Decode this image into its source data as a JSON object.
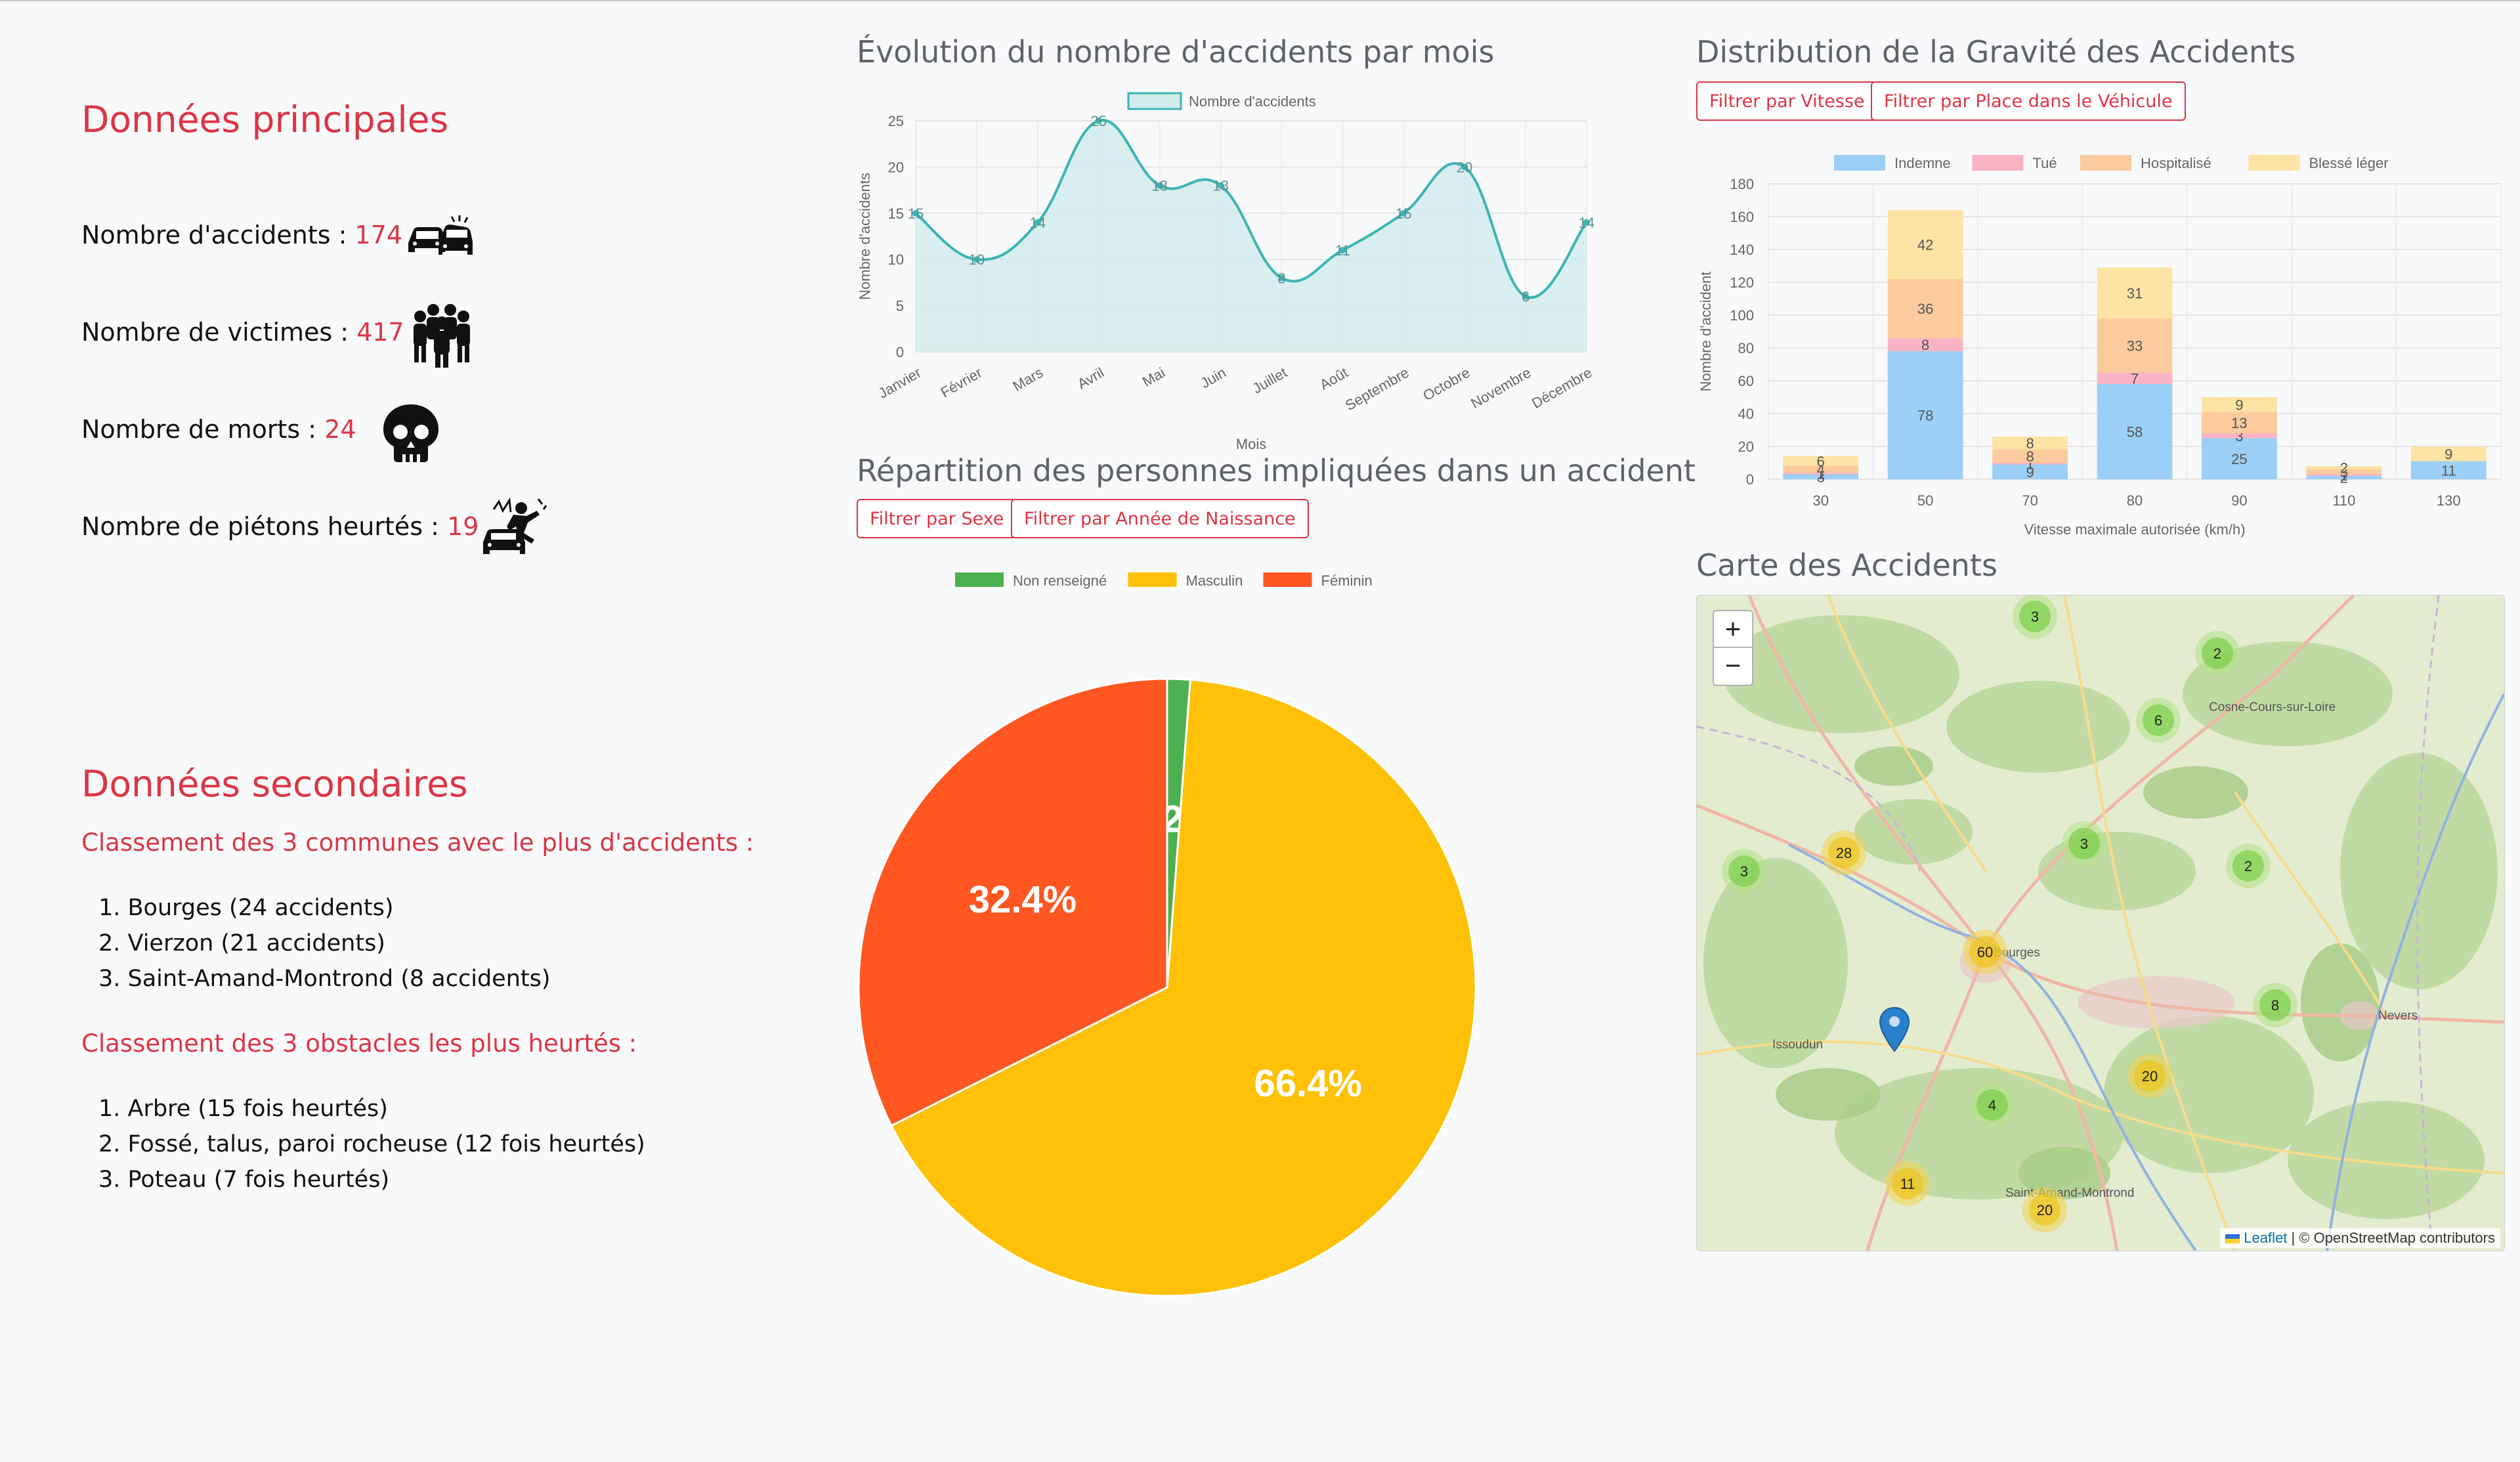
{
  "left": {
    "primary_title": "Données principales",
    "stats": [
      {
        "label": "Nombre d'accidents : ",
        "value": "174",
        "icon": "car-crash-icon"
      },
      {
        "label": "Nombre de victimes : ",
        "value": "417",
        "icon": "people-group-icon"
      },
      {
        "label": "Nombre de morts : ",
        "value": "24",
        "icon": "skull-icon"
      },
      {
        "label": "Nombre de piétons heurtés : ",
        "value": "19",
        "icon": "pedestrian-hit-icon"
      }
    ],
    "secondary_title": "Données secondaires",
    "communes_title": "Classement des 3 communes avec le plus d'accidents :",
    "communes": [
      "1. Bourges (24 accidents)",
      "2. Vierzon (21 accidents)",
      "3. Saint-Amand-Montrond (8 accidents)"
    ],
    "obstacles_title": "Classement des 3 obstacles les plus heurtés :",
    "obstacles": [
      "1. Arbre (15 fois heurtés)",
      "2. Fossé, talus, paroi rocheuse (12 fois heurtés)",
      "3. Poteau (7 fois heurtés)"
    ]
  },
  "line_section": {
    "title": "Évolution du nombre d'accidents par mois"
  },
  "pie_section": {
    "title": "Répartition des personnes impliquées dans un accident",
    "buttons": [
      "Filtrer par Sexe",
      "Filtrer par Année de Naissance"
    ]
  },
  "bar_section": {
    "title": "Distribution de la Gravité des Accidents",
    "buttons": [
      "Filtrer par Vitesse",
      "Filtrer par Place dans le Véhicule"
    ]
  },
  "map_section": {
    "title": "Carte des Accidents",
    "zoom_in": "+",
    "zoom_out": "−",
    "attribution_link": "Leaflet",
    "attribution_rest": " | © OpenStreetMap contributors",
    "places": [
      "Cosne-Cours-sur-Loire",
      "Issoudun",
      "Nevers",
      "Saint-Amand-Montrond",
      "Bourges"
    ],
    "clusters": [
      "3",
      "2",
      "6",
      "3",
      "2",
      "28",
      "3",
      "60",
      "8",
      "20",
      "4",
      "11",
      "20"
    ]
  },
  "chart_data": [
    {
      "type": "line",
      "title": "",
      "xlabel": "Mois",
      "ylabel": "Nombre d'accidents",
      "categories": [
        "Janvier",
        "Février",
        "Mars",
        "Avril",
        "Mai",
        "Juin",
        "Juillet",
        "Août",
        "Septembre",
        "Octobre",
        "Novembre",
        "Décembre"
      ],
      "series": [
        {
          "name": "Nombre d'accidents",
          "values": [
            15,
            10,
            14,
            25,
            18,
            18,
            8,
            11,
            15,
            20,
            6,
            14
          ]
        }
      ],
      "ylim": [
        0,
        25
      ],
      "yticks": [
        0,
        5,
        10,
        15,
        20,
        25
      ],
      "grid": true,
      "legend": "top",
      "colors": {
        "line": "#3cb5b5",
        "fill": "#d2ecec"
      }
    },
    {
      "type": "pie",
      "title": "",
      "legend": "top",
      "slices": [
        {
          "name": "Non renseigné",
          "value": 1.2,
          "label": "1.2%",
          "color": "#4caf50"
        },
        {
          "name": "Masculin",
          "value": 66.4,
          "label": "66.4%",
          "color": "#ffc107"
        },
        {
          "name": "Féminin",
          "value": 32.4,
          "label": "32.4%",
          "color": "#ff5722"
        }
      ]
    },
    {
      "type": "bar",
      "stacked": true,
      "title": "",
      "xlabel": "Vitesse maximale autorisée (km/h)",
      "ylabel": "Nombre d'accident",
      "categories": [
        "30",
        "50",
        "70",
        "80",
        "90",
        "110",
        "130"
      ],
      "series": [
        {
          "name": "Indemne",
          "values": [
            3,
            78,
            9,
            58,
            25,
            2,
            11
          ],
          "color": "#9ccff5"
        },
        {
          "name": "Tué",
          "values": [
            1,
            8,
            1,
            7,
            3,
            1,
            0
          ],
          "color": "#f9b4c4"
        },
        {
          "name": "Hospitalisé",
          "values": [
            4,
            36,
            8,
            33,
            13,
            3,
            0
          ],
          "color": "#fbcb9e"
        },
        {
          "name": "Blessé léger",
          "values": [
            6,
            42,
            8,
            31,
            9,
            2,
            9
          ],
          "color": "#fde3a4"
        }
      ],
      "ylim": [
        0,
        180
      ],
      "yticks": [
        0,
        20,
        40,
        60,
        80,
        100,
        120,
        140,
        160,
        180
      ],
      "grid": true,
      "legend": "top"
    }
  ]
}
